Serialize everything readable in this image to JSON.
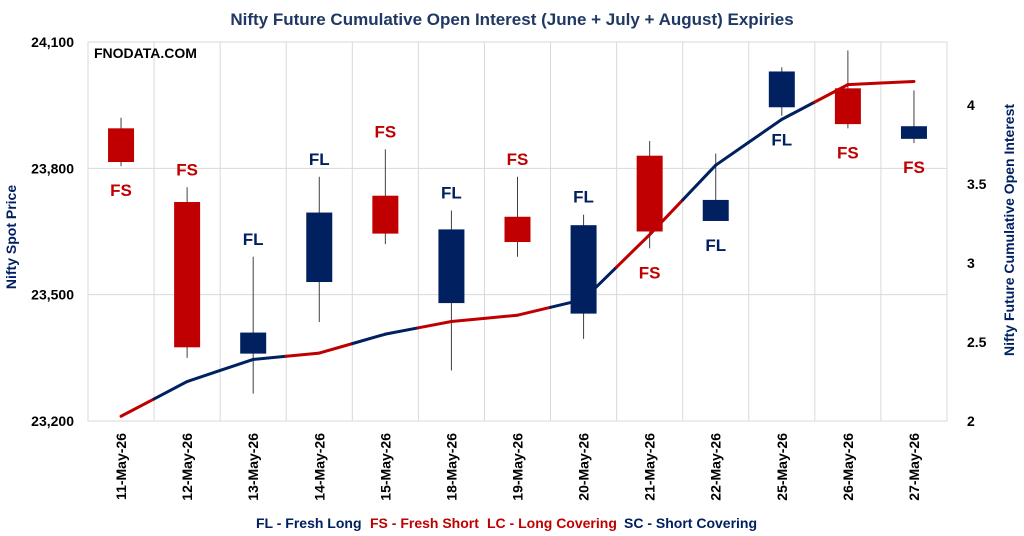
{
  "chart_data": {
    "type": "candlestick",
    "title": "Nifty Future Cumulative Open Interest (June + July + August) Expiries",
    "watermark": "FNODATA.COM",
    "ylabel": "Nifty Spot Price",
    "y2label": "Nifty Future Cumulative Open Interest",
    "ylim": [
      23200,
      24100
    ],
    "yticks": [
      23200,
      23500,
      23800,
      24100
    ],
    "ytick_labels": [
      "23,200",
      "23,500",
      "23,800",
      "24,100"
    ],
    "y2lim": [
      2,
      4.4
    ],
    "y2ticks": [
      2,
      2.5,
      3,
      3.5,
      4
    ],
    "y2tick_labels": [
      "2",
      "2.5",
      "3",
      "3.5",
      "4"
    ],
    "categories": [
      "11-May-26",
      "12-May-26",
      "13-May-26",
      "14-May-26",
      "15-May-26",
      "18-May-26",
      "19-May-26",
      "20-May-26",
      "21-May-26",
      "22-May-26",
      "25-May-26",
      "26-May-26",
      "27-May-26"
    ],
    "candles": [
      {
        "open": 23895,
        "high": 23920,
        "low": 23805,
        "close": 23815,
        "color": "#c00000",
        "label": "FS",
        "label_pos": "below"
      },
      {
        "open": 23720,
        "high": 23755,
        "low": 23350,
        "close": 23375,
        "color": "#c00000",
        "label": "FS",
        "label_pos": "above"
      },
      {
        "open": 23360,
        "high": 23590,
        "low": 23265,
        "close": 23410,
        "color": "#002060",
        "label": "FL",
        "label_pos": "above"
      },
      {
        "open": 23530,
        "high": 23780,
        "low": 23435,
        "close": 23695,
        "color": "#002060",
        "label": "FL",
        "label_pos": "above"
      },
      {
        "open": 23735,
        "high": 23845,
        "low": 23620,
        "close": 23645,
        "color": "#c00000",
        "label": "FS",
        "label_pos": "above"
      },
      {
        "open": 23480,
        "high": 23700,
        "low": 23320,
        "close": 23655,
        "color": "#002060",
        "label": "FL",
        "label_pos": "above"
      },
      {
        "open": 23685,
        "high": 23780,
        "low": 23590,
        "close": 23625,
        "color": "#c00000",
        "label": "FS",
        "label_pos": "above"
      },
      {
        "open": 23455,
        "high": 23690,
        "low": 23395,
        "close": 23665,
        "color": "#002060",
        "label": "FL",
        "label_pos": "above"
      },
      {
        "open": 23830,
        "high": 23865,
        "low": 23610,
        "close": 23650,
        "color": "#c00000",
        "label": "FS",
        "label_pos": "below"
      },
      {
        "open": 23675,
        "high": 23835,
        "low": 23675,
        "close": 23725,
        "color": "#002060",
        "label": "FL",
        "label_pos": "below"
      },
      {
        "open": 23945,
        "high": 24040,
        "low": 23925,
        "close": 24030,
        "color": "#002060",
        "label": "FL",
        "label_pos": "below"
      },
      {
        "open": 23990,
        "high": 24080,
        "low": 23895,
        "close": 23905,
        "color": "#c00000",
        "label": "FS",
        "label_pos": "below"
      },
      {
        "open": 23870,
        "high": 23985,
        "low": 23860,
        "close": 23900,
        "color": "#002060",
        "label": "FS",
        "label_pos": "below",
        "label_color": "#c00000"
      }
    ],
    "oi_line": {
      "x": [
        0,
        1,
        2,
        3,
        4,
        5,
        6,
        7,
        8,
        9,
        10,
        11,
        12
      ],
      "values": [
        2.03,
        2.25,
        2.39,
        2.43,
        2.55,
        2.63,
        2.67,
        2.77,
        3.18,
        3.62,
        3.91,
        4.13,
        4.15
      ],
      "colors": [
        "#c00000",
        "#002060",
        "#002060",
        "#c00000",
        "#002060",
        "#c00000",
        "#c00000",
        "#002060",
        "#c00000",
        "#002060",
        "#002060",
        "#c00000",
        "#c00000"
      ]
    },
    "legend": [
      {
        "text": "FL - Fresh Long",
        "color": "#002060"
      },
      {
        "text": "FS - Fresh Short",
        "color": "#c00000"
      },
      {
        "text": "LC - Long Covering",
        "color": "#c00000"
      },
      {
        "text": "SC - Short Covering",
        "color": "#002060"
      }
    ],
    "grid": true,
    "legend_placement": "bottom"
  }
}
